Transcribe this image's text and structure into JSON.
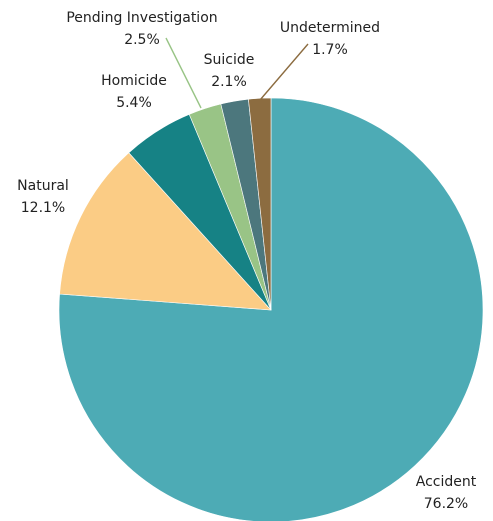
{
  "chart_data": {
    "type": "pie",
    "title": "",
    "start_angle_deg": 0,
    "direction": "clockwise",
    "legend": "none",
    "slices": [
      {
        "name": "Accident",
        "value_label": "76.2%",
        "value": 76.2,
        "color": "#4DABB5",
        "label_kind": "outside"
      },
      {
        "name": "Natural",
        "value_label": "12.1%",
        "value": 12.1,
        "color": "#FBCC85",
        "label_kind": "outside"
      },
      {
        "name": "Homicide",
        "value_label": "5.4%",
        "value": 5.4,
        "color": "#168285",
        "label_kind": "outside"
      },
      {
        "name": "Pending Investigation",
        "value_label": "2.5%",
        "value": 2.5,
        "color": "#99C486",
        "label_kind": "leader"
      },
      {
        "name": "Suicide",
        "value_label": "2.1%",
        "value": 2.1,
        "color": "#4C777D",
        "label_kind": "outside"
      },
      {
        "name": "Undetermined",
        "value_label": "1.7%",
        "value": 1.7,
        "color": "#8C6C40",
        "label_kind": "leader"
      }
    ]
  }
}
